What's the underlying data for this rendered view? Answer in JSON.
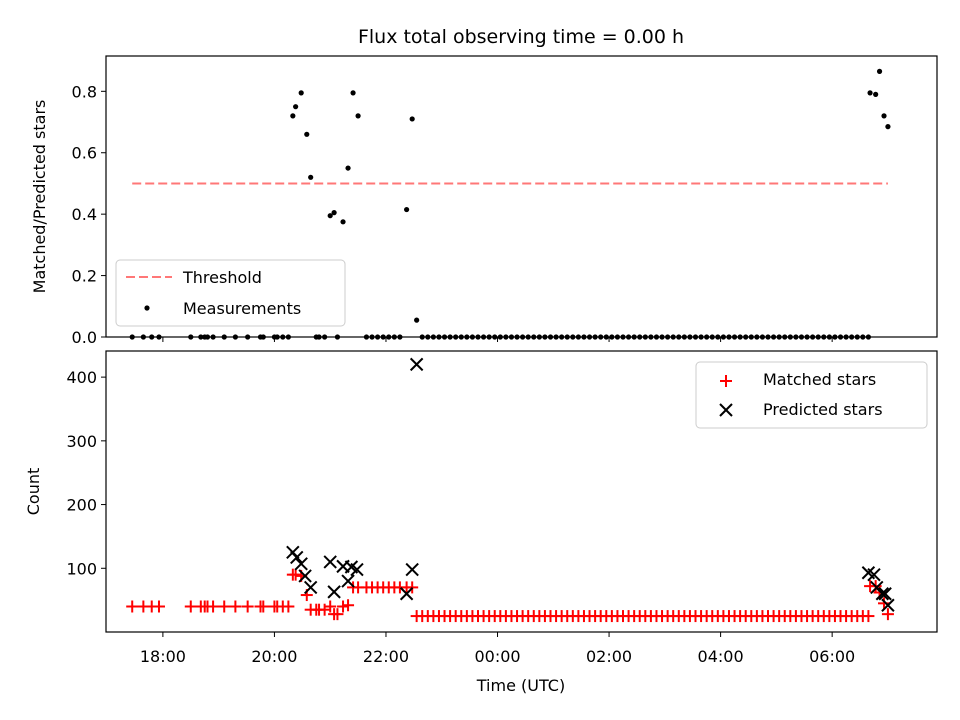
{
  "figure": {
    "title": "Flux total observing time = 0.00 h",
    "xlabel": "Time (UTC)"
  },
  "colors": {
    "threshold": "#ff7777",
    "measurements": "#000000",
    "matched": "#ff0000",
    "predicted": "#000000"
  },
  "chart_data": [
    {
      "type": "scatter",
      "ylabel": "Matched/Predicted stars",
      "xlim_hours": [
        16.98,
        31.88
      ],
      "ylim": [
        0,
        0.915
      ],
      "yticks": [
        0.0,
        0.2,
        0.4,
        0.6,
        0.8
      ],
      "ytick_labels": [
        "0.0",
        "0.2",
        "0.4",
        "0.6",
        "0.8"
      ],
      "legend": {
        "placement": "lower-left",
        "entries": [
          "Threshold",
          "Measurements"
        ]
      },
      "threshold": {
        "name": "Threshold",
        "value": 0.5,
        "x_range": [
          17.45,
          31.0
        ]
      },
      "measurements": {
        "name": "Measurements",
        "x": [
          17.45,
          17.65,
          17.8,
          17.93,
          18.5,
          18.68,
          18.75,
          18.8,
          18.9,
          19.1,
          19.3,
          19.52,
          19.75,
          19.8,
          20.0,
          20.05,
          20.15,
          20.25,
          20.33,
          20.38,
          20.48,
          20.58,
          20.65,
          20.75,
          20.8,
          20.9,
          21.0,
          21.07,
          21.13,
          21.23,
          21.32,
          21.41,
          21.5,
          21.65,
          21.75,
          21.85,
          21.95,
          22.05,
          22.15,
          22.25,
          22.37,
          22.47,
          22.55,
          22.65,
          22.75,
          22.85,
          22.95,
          23.05,
          23.15,
          23.25,
          23.35,
          23.45,
          23.55,
          23.65,
          23.75,
          23.85,
          23.95,
          24.05,
          24.15,
          24.25,
          24.35,
          24.45,
          24.55,
          24.65,
          24.75,
          24.85,
          24.95,
          25.05,
          25.15,
          25.25,
          25.35,
          25.45,
          25.55,
          25.65,
          25.75,
          25.85,
          25.95,
          26.05,
          26.15,
          26.25,
          26.35,
          26.45,
          26.55,
          26.65,
          26.75,
          26.85,
          26.95,
          27.05,
          27.15,
          27.25,
          27.35,
          27.45,
          27.55,
          27.65,
          27.75,
          27.85,
          27.95,
          28.05,
          28.15,
          28.25,
          28.35,
          28.45,
          28.55,
          28.65,
          28.75,
          28.85,
          28.95,
          29.05,
          29.15,
          29.25,
          29.35,
          29.45,
          29.55,
          29.65,
          29.75,
          29.85,
          29.95,
          30.05,
          30.15,
          30.25,
          30.35,
          30.45,
          30.55,
          30.65,
          30.68,
          30.78,
          30.85,
          30.93,
          31.0
        ],
        "y": [
          0,
          0,
          0,
          0,
          0,
          0,
          0,
          0,
          0,
          0,
          0,
          0,
          0,
          0,
          0,
          0,
          0,
          0,
          0.72,
          0.75,
          0.795,
          0.66,
          0.52,
          0,
          0,
          0,
          0.395,
          0.405,
          0,
          0.375,
          0.55,
          0.795,
          0.72,
          0,
          0,
          0,
          0,
          0,
          0,
          0,
          0.415,
          0.71,
          0.055,
          0,
          0,
          0,
          0,
          0,
          0,
          0,
          0,
          0,
          0,
          0,
          0,
          0,
          0,
          0,
          0,
          0,
          0,
          0,
          0,
          0,
          0,
          0,
          0,
          0,
          0,
          0,
          0,
          0,
          0,
          0,
          0,
          0,
          0,
          0,
          0,
          0,
          0,
          0,
          0,
          0,
          0,
          0,
          0,
          0,
          0,
          0,
          0,
          0,
          0,
          0,
          0,
          0,
          0,
          0,
          0,
          0,
          0,
          0,
          0,
          0,
          0,
          0,
          0,
          0,
          0,
          0,
          0,
          0,
          0,
          0,
          0,
          0,
          0,
          0,
          0,
          0,
          0,
          0,
          0,
          0,
          0.795,
          0.79,
          0.865,
          0.72,
          0.685
        ]
      }
    },
    {
      "type": "scatter",
      "ylabel": "Count",
      "xlim_hours": [
        16.98,
        31.88
      ],
      "ylim": [
        0,
        441
      ],
      "yticks": [
        100,
        200,
        300,
        400
      ],
      "ytick_labels": [
        "100",
        "200",
        "300",
        "400"
      ],
      "xticks_hours": [
        18,
        20,
        22,
        24,
        26,
        28,
        30
      ],
      "xtick_labels": [
        "18:00",
        "20:00",
        "22:00",
        "00:00",
        "02:00",
        "04:00",
        "06:00"
      ],
      "legend": {
        "placement": "upper-right",
        "entries": [
          "Matched stars",
          "Predicted stars"
        ]
      },
      "series": [
        {
          "name": "Matched stars",
          "marker": "plus",
          "x": [
            17.45,
            17.65,
            17.8,
            17.93,
            18.5,
            18.68,
            18.75,
            18.8,
            18.9,
            19.1,
            19.3,
            19.52,
            19.75,
            19.8,
            20.0,
            20.05,
            20.15,
            20.25,
            20.33,
            20.38,
            20.48,
            20.58,
            20.65,
            20.75,
            20.8,
            20.9,
            21.0,
            21.07,
            21.13,
            21.23,
            21.32,
            21.41,
            21.5,
            21.65,
            21.75,
            21.85,
            21.95,
            22.05,
            22.15,
            22.25,
            22.37,
            22.47,
            22.55,
            22.65,
            22.75,
            22.85,
            22.95,
            23.05,
            23.15,
            23.25,
            23.35,
            23.45,
            23.55,
            23.65,
            23.75,
            23.85,
            23.95,
            24.05,
            24.15,
            24.25,
            24.35,
            24.45,
            24.55,
            24.65,
            24.75,
            24.85,
            24.95,
            25.05,
            25.15,
            25.25,
            25.35,
            25.45,
            25.55,
            25.65,
            25.75,
            25.85,
            25.95,
            26.05,
            26.15,
            26.25,
            26.35,
            26.45,
            26.55,
            26.65,
            26.75,
            26.85,
            26.95,
            27.05,
            27.15,
            27.25,
            27.35,
            27.45,
            27.55,
            27.65,
            27.75,
            27.85,
            27.95,
            28.05,
            28.15,
            28.25,
            28.35,
            28.45,
            28.55,
            28.65,
            28.75,
            28.85,
            28.95,
            29.05,
            29.15,
            29.25,
            29.35,
            29.45,
            29.55,
            29.65,
            29.75,
            29.85,
            29.95,
            30.05,
            30.15,
            30.25,
            30.35,
            30.45,
            30.55,
            30.65,
            30.68,
            30.78,
            30.85,
            30.93,
            31.0
          ],
          "y": [
            40,
            40,
            40,
            40,
            40,
            40,
            40,
            40,
            40,
            40,
            40,
            40,
            40,
            40,
            40,
            40,
            40,
            40,
            90,
            90,
            88,
            58,
            35,
            35,
            35,
            35,
            40,
            28,
            28,
            40,
            42,
            70,
            70,
            70,
            70,
            70,
            70,
            70,
            70,
            70,
            70,
            70,
            25,
            25,
            25,
            25,
            25,
            25,
            25,
            25,
            25,
            25,
            25,
            25,
            25,
            25,
            25,
            25,
            25,
            25,
            25,
            25,
            25,
            25,
            25,
            25,
            25,
            25,
            25,
            25,
            25,
            25,
            25,
            25,
            25,
            25,
            25,
            25,
            25,
            25,
            25,
            25,
            25,
            25,
            25,
            25,
            25,
            25,
            25,
            25,
            25,
            25,
            25,
            25,
            25,
            25,
            25,
            25,
            25,
            25,
            25,
            25,
            25,
            25,
            25,
            25,
            25,
            25,
            25,
            25,
            25,
            25,
            25,
            25,
            25,
            25,
            25,
            25,
            25,
            25,
            25,
            25,
            25,
            25,
            72,
            72,
            62,
            45,
            28
          ]
        },
        {
          "name": "Predicted stars",
          "marker": "x",
          "x": [
            20.33,
            20.4,
            20.48,
            20.55,
            20.65,
            21.0,
            21.07,
            21.23,
            21.32,
            21.38,
            21.48,
            22.37,
            22.47,
            22.55,
            30.65,
            30.75,
            30.8,
            30.9,
            30.95,
            31.0
          ],
          "y": [
            125,
            117,
            107,
            88,
            70,
            110,
            63,
            103,
            80,
            102,
            98,
            60,
            98,
            420,
            93,
            90,
            70,
            60,
            60,
            42
          ]
        }
      ]
    }
  ]
}
